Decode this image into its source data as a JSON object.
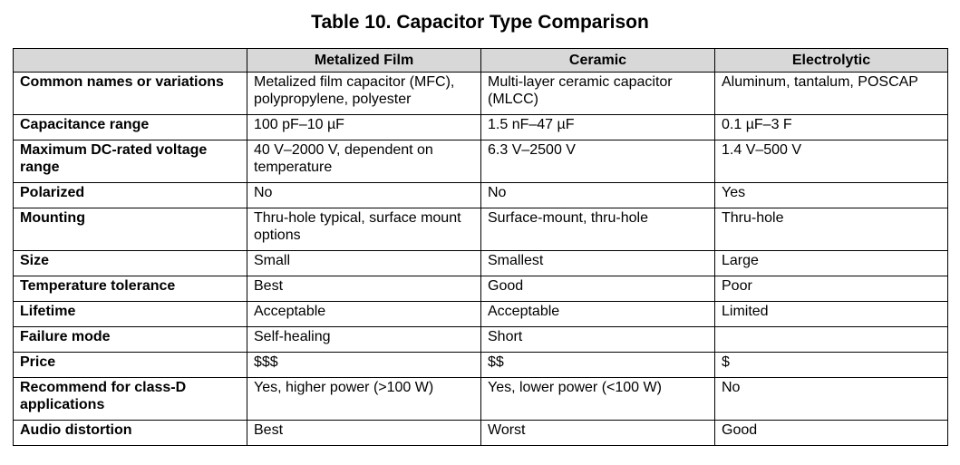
{
  "title": "Table 10. Capacitor Type Comparison",
  "table": {
    "headers": [
      "",
      "Metalized Film",
      "Ceramic",
      "Electrolytic"
    ],
    "rows": [
      [
        "Common names or variations",
        "Metalized film capacitor (MFC), polypropylene, polyester",
        "Multi-layer ceramic capacitor (MLCC)",
        "Aluminum, tantalum, POSCAP"
      ],
      [
        "Capacitance range",
        "100 pF–10 µF",
        "1.5 nF–47 µF",
        "0.1 µF–3 F"
      ],
      [
        "Maximum DC-rated voltage range",
        "40 V–2000 V, dependent on temperature",
        "6.3 V–2500 V",
        "1.4 V–500 V"
      ],
      [
        "Polarized",
        "No",
        "No",
        "Yes"
      ],
      [
        "Mounting",
        "Thru-hole typical, surface mount options",
        "Surface-mount, thru-hole",
        "Thru-hole"
      ],
      [
        "Size",
        "Small",
        "Smallest",
        "Large"
      ],
      [
        "Temperature tolerance",
        "Best",
        "Good",
        "Poor"
      ],
      [
        "Lifetime",
        "Acceptable",
        "Acceptable",
        "Limited"
      ],
      [
        "Failure mode",
        "Self-healing",
        "Short",
        ""
      ],
      [
        "Price",
        "$$$",
        "$$",
        "$"
      ],
      [
        "Recommend for class-D applications",
        "Yes, higher power (>100 W)",
        "Yes, lower power (<100 W)",
        "No"
      ],
      [
        "Audio distortion",
        "Best",
        "Worst",
        "Good"
      ]
    ]
  }
}
